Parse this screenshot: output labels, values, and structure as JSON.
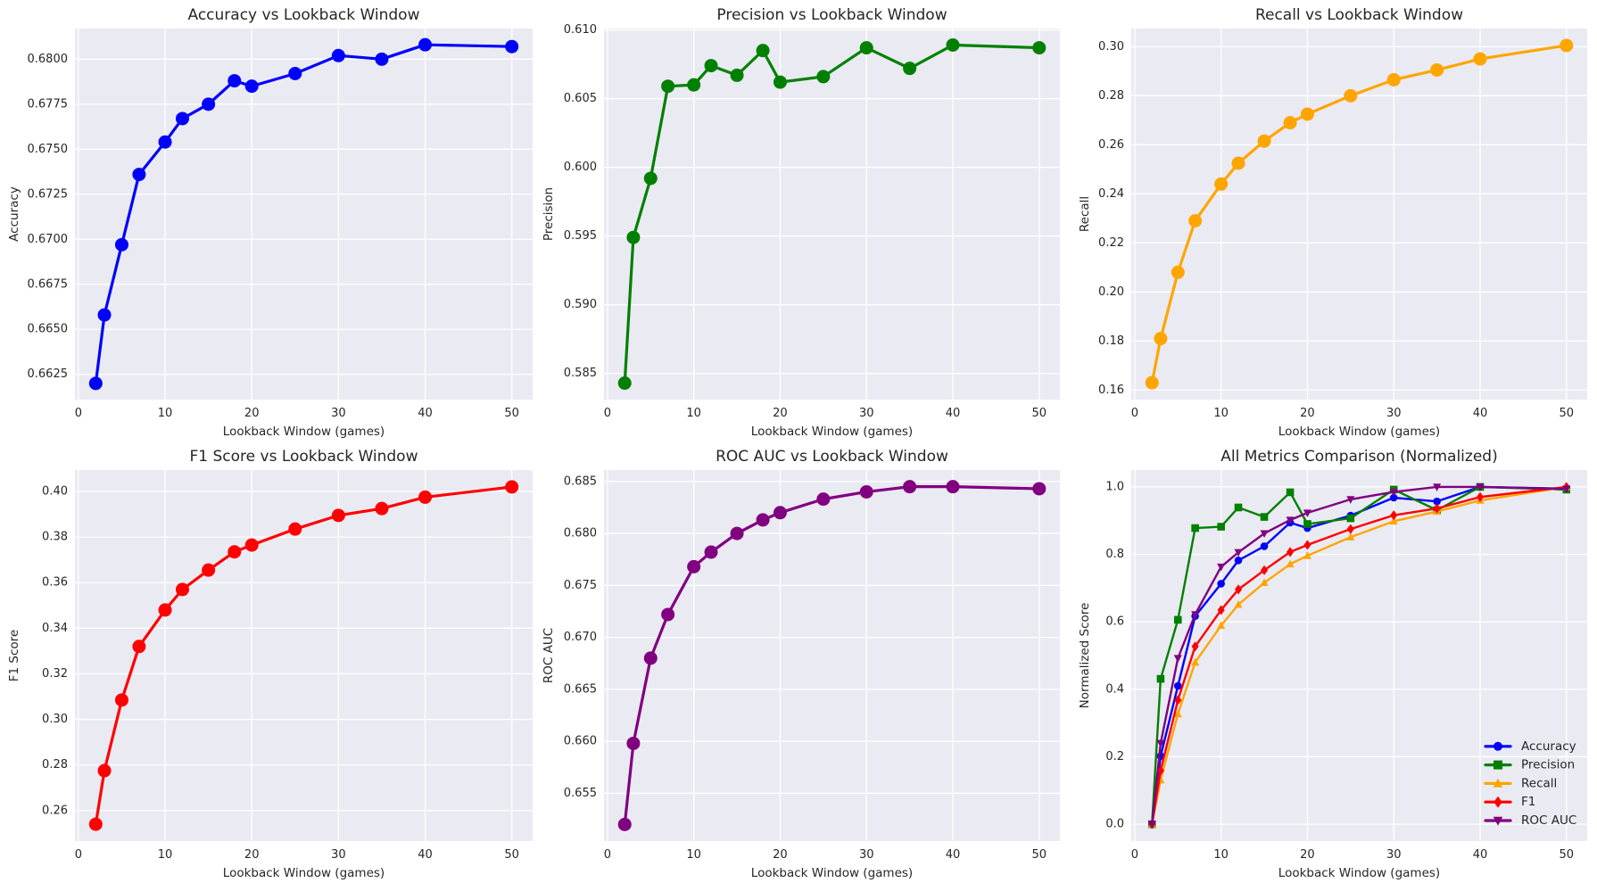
{
  "style": {
    "figure_background": "#ffffff",
    "axes_background": "#eaeaf2",
    "grid_color": "#ffffff",
    "text_color": "#262626",
    "series_colors": {
      "accuracy": "#0000ff",
      "precision": "#008000",
      "recall": "#ffa500",
      "f1": "#ff0000",
      "roc_auc": "#800080"
    }
  },
  "chart_data": [
    {
      "type": "line",
      "title": "Accuracy vs Lookback Window",
      "xlabel": "Lookback Window (games)",
      "ylabel": "Accuracy",
      "x": [
        2,
        3,
        5,
        7,
        10,
        12,
        15,
        18,
        20,
        25,
        30,
        35,
        40,
        50
      ],
      "series": [
        {
          "name": "Accuracy",
          "color": "#0000ff",
          "marker": "circle",
          "values": [
            0.662,
            0.6658,
            0.6697,
            0.6736,
            0.6754,
            0.6767,
            0.6775,
            0.6788,
            0.6785,
            0.6792,
            0.6802,
            0.68,
            0.6808,
            0.6807
          ]
        }
      ],
      "xlim": [
        -0.4,
        52.4
      ],
      "ylim": [
        0.6611,
        0.6817
      ],
      "xticks": [
        "0",
        "10",
        "20",
        "30",
        "40",
        "50"
      ],
      "yticks": [
        "0.6625",
        "0.6650",
        "0.6675",
        "0.6700",
        "0.6725",
        "0.6750",
        "0.6775",
        "0.6800"
      ],
      "grid": true,
      "legend": null
    },
    {
      "type": "line",
      "title": "Precision vs Lookback Window",
      "xlabel": "Lookback Window (games)",
      "ylabel": "Precision",
      "x": [
        2,
        3,
        5,
        7,
        10,
        12,
        15,
        18,
        20,
        25,
        30,
        35,
        40,
        50
      ],
      "series": [
        {
          "name": "Precision",
          "color": "#008000",
          "marker": "circle",
          "values": [
            0.5843,
            0.5949,
            0.5992,
            0.6059,
            0.606,
            0.6074,
            0.6067,
            0.6085,
            0.6062,
            0.6066,
            0.6087,
            0.6072,
            0.6089,
            0.6087
          ]
        }
      ],
      "xlim": [
        -0.4,
        52.4
      ],
      "ylim": [
        0.5831,
        0.6101
      ],
      "xticks": [
        "0",
        "10",
        "20",
        "30",
        "40",
        "50"
      ],
      "yticks": [
        "0.585",
        "0.590",
        "0.595",
        "0.600",
        "0.605",
        "0.610"
      ],
      "grid": true,
      "legend": null
    },
    {
      "type": "line",
      "title": "Recall vs Lookback Window",
      "xlabel": "Lookback Window (games)",
      "ylabel": "Recall",
      "x": [
        2,
        3,
        5,
        7,
        10,
        12,
        15,
        18,
        20,
        25,
        30,
        35,
        40,
        50
      ],
      "series": [
        {
          "name": "Recall",
          "color": "#ffa500",
          "marker": "circle",
          "values": [
            0.163,
            0.181,
            0.208,
            0.229,
            0.244,
            0.2525,
            0.2615,
            0.269,
            0.2725,
            0.28,
            0.2865,
            0.2905,
            0.295,
            0.3005
          ]
        }
      ],
      "xlim": [
        -0.4,
        52.4
      ],
      "ylim": [
        0.1561,
        0.3074
      ],
      "xticks": [
        "0",
        "10",
        "20",
        "30",
        "40",
        "50"
      ],
      "yticks": [
        "0.16",
        "0.18",
        "0.20",
        "0.22",
        "0.24",
        "0.26",
        "0.28",
        "0.30"
      ],
      "grid": true,
      "legend": null
    },
    {
      "type": "line",
      "title": "F1 Score vs Lookback Window",
      "xlabel": "Lookback Window (games)",
      "ylabel": "F1 Score",
      "x": [
        2,
        3,
        5,
        7,
        10,
        12,
        15,
        18,
        20,
        25,
        30,
        35,
        40,
        50
      ],
      "series": [
        {
          "name": "F1",
          "color": "#ff0000",
          "marker": "circle",
          "values": [
            0.254,
            0.2775,
            0.3085,
            0.332,
            0.348,
            0.357,
            0.3655,
            0.3735,
            0.3765,
            0.3835,
            0.3895,
            0.3925,
            0.3975,
            0.402
          ]
        }
      ],
      "xlim": [
        -0.4,
        52.4
      ],
      "ylim": [
        0.2466,
        0.4094
      ],
      "xticks": [
        "0",
        "10",
        "20",
        "30",
        "40",
        "50"
      ],
      "yticks": [
        "0.26",
        "0.28",
        "0.30",
        "0.32",
        "0.34",
        "0.36",
        "0.38",
        "0.40"
      ],
      "grid": true,
      "legend": null
    },
    {
      "type": "line",
      "title": "ROC AUC vs Lookback Window",
      "xlabel": "Lookback Window (games)",
      "ylabel": "ROC AUC",
      "x": [
        2,
        3,
        5,
        7,
        10,
        12,
        15,
        18,
        20,
        25,
        30,
        35,
        40,
        50
      ],
      "series": [
        {
          "name": "ROC AUC",
          "color": "#800080",
          "marker": "circle",
          "values": [
            0.652,
            0.6598,
            0.668,
            0.6722,
            0.6768,
            0.6782,
            0.68,
            0.6813,
            0.682,
            0.6833,
            0.684,
            0.6845,
            0.6845,
            0.6843
          ]
        }
      ],
      "xlim": [
        -0.4,
        52.4
      ],
      "ylim": [
        0.6504,
        0.6861
      ],
      "xticks": [
        "0",
        "10",
        "20",
        "30",
        "40",
        "50"
      ],
      "yticks": [
        "0.655",
        "0.660",
        "0.665",
        "0.670",
        "0.675",
        "0.680",
        "0.685"
      ],
      "grid": true,
      "legend": null
    },
    {
      "type": "line",
      "title": "All Metrics Comparison (Normalized)",
      "xlabel": "Lookback Window (games)",
      "ylabel": "Normalized Score",
      "x": [
        2,
        3,
        5,
        7,
        10,
        12,
        15,
        18,
        20,
        25,
        30,
        35,
        40,
        50
      ],
      "series": [
        {
          "name": "Accuracy",
          "color": "#0000ff",
          "marker": "circle",
          "values": [
            0.0,
            0.202,
            0.41,
            0.617,
            0.713,
            0.782,
            0.824,
            0.894,
            0.878,
            0.915,
            0.968,
            0.957,
            1.0,
            0.995
          ]
        },
        {
          "name": "Precision",
          "color": "#008000",
          "marker": "square",
          "values": [
            0.0,
            0.431,
            0.606,
            0.878,
            0.882,
            0.939,
            0.911,
            0.984,
            0.89,
            0.907,
            0.992,
            0.931,
            1.0,
            0.992
          ]
        },
        {
          "name": "Recall",
          "color": "#ffa500",
          "marker": "triangle-up",
          "values": [
            0.0,
            0.131,
            0.327,
            0.48,
            0.589,
            0.651,
            0.716,
            0.771,
            0.796,
            0.851,
            0.898,
            0.927,
            0.96,
            1.0
          ]
        },
        {
          "name": "F1",
          "color": "#ff0000",
          "marker": "diamond",
          "values": [
            0.0,
            0.159,
            0.368,
            0.527,
            0.635,
            0.696,
            0.753,
            0.807,
            0.828,
            0.875,
            0.916,
            0.936,
            0.97,
            1.0
          ]
        },
        {
          "name": "ROC AUC",
          "color": "#800080",
          "marker": "triangle-down",
          "values": [
            0.0,
            0.24,
            0.492,
            0.622,
            0.763,
            0.806,
            0.862,
            0.902,
            0.923,
            0.963,
            0.985,
            1.0,
            1.0,
            0.994
          ]
        }
      ],
      "xlim": [
        -0.4,
        52.4
      ],
      "ylim": [
        -0.05,
        1.05
      ],
      "xticks": [
        "0",
        "10",
        "20",
        "30",
        "40",
        "50"
      ],
      "yticks": [
        "0.0",
        "0.2",
        "0.4",
        "0.6",
        "0.8",
        "1.0"
      ],
      "grid": true,
      "legend": {
        "position": "lower right",
        "entries": [
          "Accuracy",
          "Precision",
          "Recall",
          "F1",
          "ROC AUC"
        ]
      }
    }
  ]
}
